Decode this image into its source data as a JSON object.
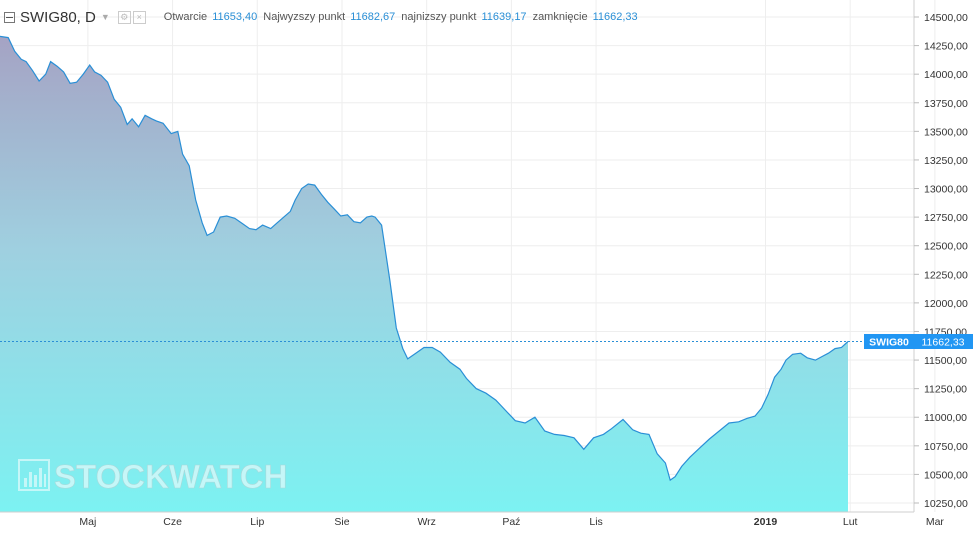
{
  "header": {
    "symbol": "SWIG80, D",
    "ohlc": [
      {
        "label": "Otwarcie",
        "value": "11653,40"
      },
      {
        "label": "Najwyzszy punkt",
        "value": "11682,67"
      },
      {
        "label": "najnizszy punkt",
        "value": "11639,17"
      },
      {
        "label": "zamknięcie",
        "value": "11662,33"
      }
    ]
  },
  "watermark": {
    "text": "STOCKWATCH"
  },
  "colors": {
    "line": "#2a8fd6",
    "fill_top": "#a5a3c4",
    "fill_bottom": "#7cf2f2",
    "label_bg": "#2196f3",
    "grid": "#eeeeee"
  },
  "chart_data": {
    "type": "area",
    "series": [
      {
        "name": "SWIG80"
      }
    ],
    "y_ticks": [
      "14500,00",
      "14250,00",
      "14000,00",
      "13750,00",
      "13500,00",
      "13250,00",
      "13000,00",
      "12750,00",
      "12500,00",
      "12250,00",
      "12000,00",
      "11750,00",
      "11500,00",
      "11250,00",
      "11000,00",
      "10750,00",
      "10500,00",
      "10250,00"
    ],
    "y_tick_values": [
      14500,
      14250,
      14000,
      13750,
      13500,
      13250,
      13000,
      12750,
      12500,
      12250,
      12000,
      11750,
      11500,
      11250,
      11000,
      10750,
      10500,
      10250
    ],
    "ylim": [
      10100,
      14600
    ],
    "x_ticks": [
      {
        "label": "Maj",
        "month": 1
      },
      {
        "label": "Cze",
        "month": 2
      },
      {
        "label": "Lip",
        "month": 3
      },
      {
        "label": "Sie",
        "month": 4
      },
      {
        "label": "Wrz",
        "month": 5
      },
      {
        "label": "Paź",
        "month": 6
      },
      {
        "label": "Lis",
        "month": 7
      },
      {
        "label": "2019",
        "month": 9,
        "bold": true
      },
      {
        "label": "Lut",
        "month": 10
      },
      {
        "label": "Mar",
        "month": 11
      }
    ],
    "points": [
      [
        0.0,
        14330
      ],
      [
        0.05,
        14320
      ],
      [
        0.09,
        14200
      ],
      [
        0.13,
        14130
      ],
      [
        0.16,
        14110
      ],
      [
        0.2,
        14030
      ],
      [
        0.24,
        13940
      ],
      [
        0.28,
        14000
      ],
      [
        0.31,
        14110
      ],
      [
        0.35,
        14070
      ],
      [
        0.39,
        14020
      ],
      [
        0.43,
        13920
      ],
      [
        0.47,
        13930
      ],
      [
        0.51,
        14000
      ],
      [
        0.55,
        14080
      ],
      [
        0.58,
        14020
      ],
      [
        0.62,
        13990
      ],
      [
        0.66,
        13930
      ],
      [
        0.7,
        13780
      ],
      [
        0.74,
        13710
      ],
      [
        0.78,
        13560
      ],
      [
        0.81,
        13610
      ],
      [
        0.85,
        13540
      ],
      [
        0.89,
        13640
      ],
      [
        0.93,
        13610
      ],
      [
        0.96,
        13590
      ],
      [
        1.0,
        13570
      ],
      [
        1.05,
        13480
      ],
      [
        1.09,
        13500
      ],
      [
        1.12,
        13300
      ],
      [
        1.16,
        13200
      ],
      [
        1.2,
        12900
      ],
      [
        1.24,
        12700
      ],
      [
        1.27,
        12590
      ],
      [
        1.31,
        12620
      ],
      [
        1.35,
        12750
      ],
      [
        1.39,
        12760
      ],
      [
        1.44,
        12740
      ],
      [
        1.49,
        12690
      ],
      [
        1.53,
        12650
      ],
      [
        1.57,
        12640
      ],
      [
        1.61,
        12680
      ],
      [
        1.66,
        12650
      ],
      [
        1.7,
        12700
      ],
      [
        1.74,
        12750
      ],
      [
        1.78,
        12800
      ],
      [
        1.81,
        12900
      ],
      [
        1.85,
        13000
      ],
      [
        1.89,
        13040
      ],
      [
        1.93,
        13030
      ],
      [
        1.97,
        12950
      ],
      [
        2.01,
        12880
      ],
      [
        2.05,
        12820
      ],
      [
        2.09,
        12760
      ],
      [
        2.13,
        12770
      ],
      [
        2.17,
        12710
      ],
      [
        2.21,
        12700
      ],
      [
        2.25,
        12750
      ],
      [
        2.28,
        12760
      ],
      [
        2.3,
        12750
      ],
      [
        2.34,
        12680
      ],
      [
        2.39,
        12200
      ],
      [
        2.43,
        11780
      ],
      [
        2.47,
        11600
      ],
      [
        2.5,
        11510
      ],
      [
        2.55,
        11560
      ],
      [
        2.6,
        11610
      ],
      [
        2.65,
        11610
      ],
      [
        2.7,
        11570
      ],
      [
        2.76,
        11480
      ],
      [
        2.82,
        11420
      ],
      [
        2.86,
        11340
      ],
      [
        2.92,
        11250
      ],
      [
        2.98,
        11210
      ],
      [
        3.04,
        11150
      ],
      [
        3.1,
        11060
      ],
      [
        3.16,
        10970
      ],
      [
        3.22,
        10950
      ],
      [
        3.28,
        11000
      ],
      [
        3.34,
        10880
      ],
      [
        3.4,
        10850
      ],
      [
        3.46,
        10840
      ],
      [
        3.52,
        10820
      ],
      [
        3.58,
        10720
      ],
      [
        3.64,
        10820
      ],
      [
        3.7,
        10850
      ],
      [
        3.75,
        10900
      ],
      [
        3.82,
        10980
      ],
      [
        3.88,
        10890
      ],
      [
        3.93,
        10860
      ],
      [
        3.98,
        10850
      ],
      [
        4.03,
        10680
      ],
      [
        4.08,
        10600
      ],
      [
        4.11,
        10450
      ],
      [
        4.14,
        10480
      ],
      [
        4.18,
        10570
      ],
      [
        4.23,
        10650
      ],
      [
        4.29,
        10730
      ],
      [
        4.35,
        10810
      ],
      [
        4.41,
        10880
      ],
      [
        4.47,
        10950
      ],
      [
        4.53,
        10960
      ],
      [
        4.58,
        10990
      ],
      [
        4.63,
        11010
      ],
      [
        4.67,
        11080
      ],
      [
        4.71,
        11200
      ],
      [
        4.75,
        11350
      ],
      [
        4.79,
        11420
      ],
      [
        4.82,
        11500
      ],
      [
        4.86,
        11550
      ],
      [
        4.91,
        11560
      ],
      [
        4.95,
        11520
      ],
      [
        5.0,
        11500
      ],
      [
        5.04,
        11530
      ],
      [
        5.08,
        11560
      ],
      [
        5.12,
        11600
      ],
      [
        5.16,
        11610
      ],
      [
        5.2,
        11662.33
      ]
    ],
    "last_value": "11662,33",
    "last_value_num": 11662.33,
    "grid": true
  }
}
